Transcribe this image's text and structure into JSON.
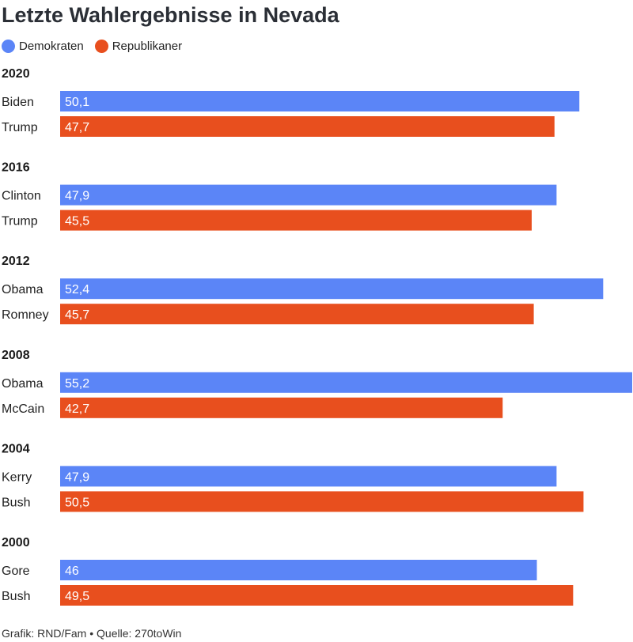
{
  "title": "Letzte Wahlergebnisse in Nevada",
  "legend": [
    {
      "label": "Demokraten",
      "color": "#5b85f7"
    },
    {
      "label": "Republikaner",
      "color": "#e84f1e"
    }
  ],
  "footer": {
    "credit": "Grafik: RND/Fam",
    "separator": "•",
    "source": "Quelle: 270toWin"
  },
  "chart_data": {
    "type": "bar",
    "orientation": "horizontal",
    "xlim": [
      0,
      55.2
    ],
    "grid": false,
    "legend_placement": "top-left",
    "groups": [
      {
        "year": "2020",
        "bars": [
          {
            "candidate": "Biden",
            "party": "Demokraten",
            "value": 50.1,
            "label": "50,1"
          },
          {
            "candidate": "Trump",
            "party": "Republikaner",
            "value": 47.7,
            "label": "47,7"
          }
        ]
      },
      {
        "year": "2016",
        "bars": [
          {
            "candidate": "Clinton",
            "party": "Demokraten",
            "value": 47.9,
            "label": "47,9"
          },
          {
            "candidate": "Trump",
            "party": "Republikaner",
            "value": 45.5,
            "label": "45,5"
          }
        ]
      },
      {
        "year": "2012",
        "bars": [
          {
            "candidate": "Obama",
            "party": "Demokraten",
            "value": 52.4,
            "label": "52,4"
          },
          {
            "candidate": "Romney",
            "party": "Republikaner",
            "value": 45.7,
            "label": "45,7"
          }
        ]
      },
      {
        "year": "2008",
        "bars": [
          {
            "candidate": "Obama",
            "party": "Demokraten",
            "value": 55.2,
            "label": "55,2"
          },
          {
            "candidate": "McCain",
            "party": "Republikaner",
            "value": 42.7,
            "label": "42,7"
          }
        ]
      },
      {
        "year": "2004",
        "bars": [
          {
            "candidate": "Kerry",
            "party": "Demokraten",
            "value": 47.9,
            "label": "47,9"
          },
          {
            "candidate": "Bush",
            "party": "Republikaner",
            "value": 50.5,
            "label": "50,5"
          }
        ]
      },
      {
        "year": "2000",
        "bars": [
          {
            "candidate": "Gore",
            "party": "Demokraten",
            "value": 46,
            "label": "46"
          },
          {
            "candidate": "Bush",
            "party": "Republikaner",
            "value": 49.5,
            "label": "49,5"
          }
        ]
      }
    ]
  }
}
